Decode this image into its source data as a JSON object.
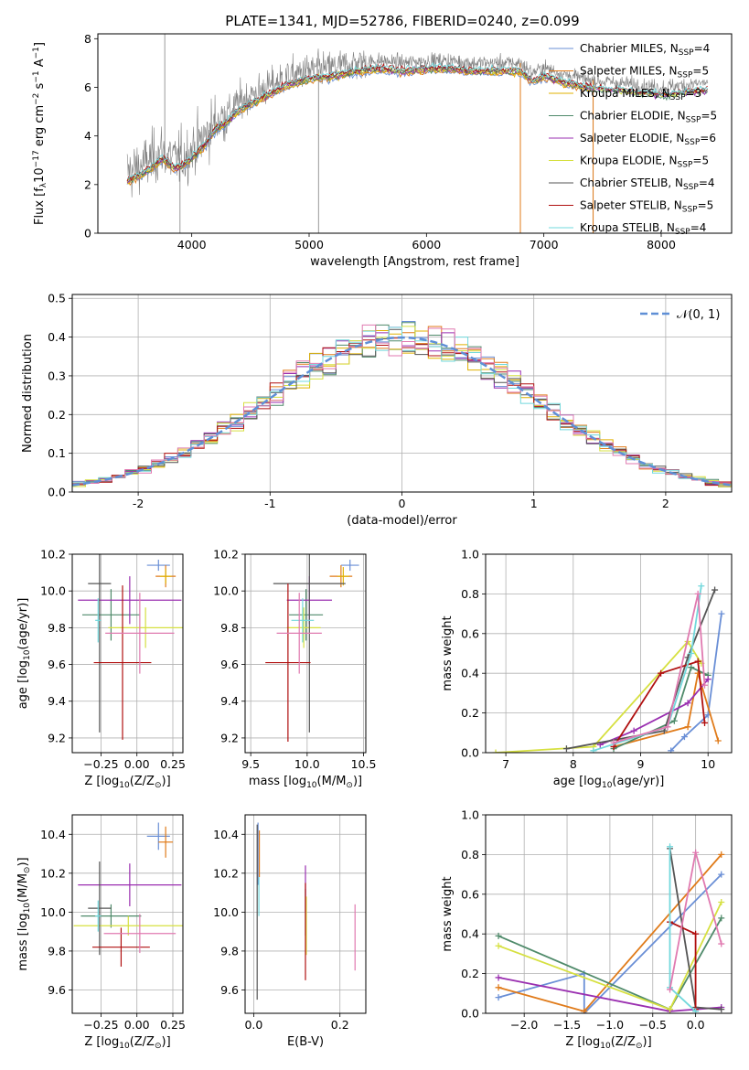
{
  "title": "PLATE=1341, MJD=52786, FIBERID=0240, z=0.099",
  "colors": {
    "Chabrier MILES": "#6a8fd6",
    "Salpeter MILES": "#e07b1a",
    "Kroupa MILES": "#e0b000",
    "Chabrier ELODIE": "#4f8a6a",
    "Salpeter ELODIE": "#9a2fb0",
    "Kroupa ELODIE": "#d6e040",
    "Chabrier STELIB": "#555555",
    "Salpeter STELIB": "#b01010",
    "Kroupa STELIB": "#72d8dc",
    "Pink": "#e07ab0",
    "Gauss": "#5f8fd6"
  },
  "chart_data": [
    {
      "id": "spectrum",
      "type": "line",
      "xlabel": "wavelength [Angstrom, rest frame]",
      "ylabel_parts": [
        "Flux [f",
        "λ",
        "10",
        "−17",
        " erg cm",
        "−2",
        " s",
        "−1",
        " A",
        "−1",
        "]"
      ],
      "xlim": [
        3200,
        8600
      ],
      "ylim": [
        0,
        8.2
      ],
      "xticks": [
        4000,
        5000,
        6000,
        7000,
        8000
      ],
      "yticks": [
        0,
        2,
        4,
        6,
        8
      ],
      "continuum": [
        [
          3450,
          2.5
        ],
        [
          3550,
          2.7
        ],
        [
          3650,
          3.0
        ],
        [
          3750,
          3.4
        ],
        [
          3850,
          3.0
        ],
        [
          3950,
          3.2
        ],
        [
          4100,
          3.9
        ],
        [
          4200,
          4.6
        ],
        [
          4300,
          4.9
        ],
        [
          4400,
          5.4
        ],
        [
          4600,
          5.9
        ],
        [
          4800,
          6.4
        ],
        [
          5000,
          6.7
        ],
        [
          5200,
          6.8
        ],
        [
          5400,
          7.0
        ],
        [
          5600,
          7.1
        ],
        [
          5800,
          7.0
        ],
        [
          6000,
          7.1
        ],
        [
          6200,
          7.1
        ],
        [
          6400,
          7.0
        ],
        [
          6600,
          7.0
        ],
        [
          6800,
          7.0
        ],
        [
          6900,
          6.6
        ],
        [
          7000,
          6.8
        ],
        [
          7200,
          6.5
        ],
        [
          7400,
          6.3
        ],
        [
          7600,
          6.2
        ],
        [
          7800,
          6.1
        ],
        [
          8000,
          6.0
        ],
        [
          8200,
          6.1
        ],
        [
          8400,
          6.2
        ]
      ],
      "legend": [
        {
          "name": "Chabrier MILES",
          "n": "4"
        },
        {
          "name": "Salpeter MILES",
          "n": "5"
        },
        {
          "name": "Kroupa MILES",
          "n": "3"
        },
        {
          "name": "Chabrier ELODIE",
          "n": "5"
        },
        {
          "name": "Salpeter ELODIE",
          "n": "6"
        },
        {
          "name": "Kroupa ELODIE",
          "n": "5"
        },
        {
          "name": "Chabrier STELIB",
          "n": "4"
        },
        {
          "name": "Salpeter STELIB",
          "n": "5"
        },
        {
          "name": "Kroupa STELIB",
          "n": "4"
        }
      ],
      "grid": false,
      "legend_position": "right"
    },
    {
      "id": "residuals",
      "type": "step",
      "xlabel": "(data-model)/error",
      "ylabel": "Normed distribution",
      "xlim": [
        -2.5,
        2.5
      ],
      "ylim": [
        0,
        0.51
      ],
      "xticks": [
        -2,
        -1,
        0,
        1,
        2
      ],
      "yticks": [
        0.0,
        0.1,
        0.2,
        0.3,
        0.4,
        0.5
      ],
      "bin_width": 0.1,
      "gauss_label": "𝒩(0, 1)",
      "grid": true,
      "legend_position": "top-right"
    },
    {
      "id": "age_vs_Z",
      "type": "errorbar",
      "xlabel_parts": [
        "Z [log",
        "10",
        "(Z/Z",
        "⊙",
        ")]"
      ],
      "ylabel_parts": [
        "age  [log",
        "10",
        "(age/yr)]"
      ],
      "xlim": [
        -0.45,
        0.32
      ],
      "ylim": [
        9.12,
        10.2
      ],
      "xticks": [
        -0.25,
        0.0,
        0.25
      ],
      "xtick_labels": [
        "−0.25",
        "0.00",
        "0.25"
      ],
      "yticks": [
        9.2,
        9.4,
        9.6,
        9.8,
        10.0,
        10.2
      ],
      "points": [
        {
          "s": "Chabrier MILES",
          "x": 0.15,
          "y": 10.14,
          "xe": 0.08,
          "ye": 0.03
        },
        {
          "s": "Salpeter MILES",
          "x": 0.2,
          "y": 10.08,
          "xe": 0.07,
          "ye": 0.06
        },
        {
          "s": "Kroupa MILES",
          "x": 0.2,
          "y": 10.08,
          "xe": 0.04,
          "ye": 0.04
        },
        {
          "s": "Chabrier ELODIE",
          "x": -0.18,
          "y": 9.87,
          "xe": 0.2,
          "ye": 0.14
        },
        {
          "s": "Salpeter ELODIE",
          "x": -0.05,
          "y": 9.95,
          "xe": 0.36,
          "ye": 0.13
        },
        {
          "s": "Kroupa ELODIE",
          "x": 0.06,
          "y": 9.8,
          "xe": 0.26,
          "ye": 0.11
        },
        {
          "s": "Chabrier STELIB",
          "x": -0.26,
          "y": 10.04,
          "xe": 0.08,
          "ye": 0.81
        },
        {
          "s": "Salpeter STELIB",
          "x": -0.1,
          "y": 9.61,
          "xe": 0.2,
          "ye": 0.42
        },
        {
          "s": "Kroupa STELIB",
          "x": -0.27,
          "y": 9.84,
          "xe": 0.02,
          "ye": 0.12
        },
        {
          "s": "Pink",
          "x": 0.02,
          "y": 9.77,
          "xe": 0.24,
          "ye": 0.22
        }
      ],
      "grid": true
    },
    {
      "id": "age_vs_mass",
      "type": "errorbar",
      "xlabel_parts": [
        "mass [log",
        "10",
        "(M/M",
        "⊙",
        ")]"
      ],
      "xlim": [
        9.45,
        10.52
      ],
      "ylim": [
        9.12,
        10.2
      ],
      "xticks": [
        9.5,
        10.0,
        10.5
      ],
      "xtick_labels": [
        "9.5",
        "10.0",
        "10.5"
      ],
      "yticks": [
        9.2,
        9.4,
        9.6,
        9.8,
        10.0,
        10.2
      ],
      "points": [
        {
          "s": "Chabrier MILES",
          "x": 10.38,
          "y": 10.14,
          "xe": 0.08,
          "ye": 0.03
        },
        {
          "s": "Salpeter MILES",
          "x": 10.3,
          "y": 10.08,
          "xe": 0.1,
          "ye": 0.06
        },
        {
          "s": "Kroupa MILES",
          "x": 10.32,
          "y": 10.08,
          "xe": 0.05,
          "ye": 0.05
        },
        {
          "s": "Chabrier ELODIE",
          "x": 9.99,
          "y": 9.87,
          "xe": 0.15,
          "ye": 0.14
        },
        {
          "s": "Salpeter ELODIE",
          "x": 10.02,
          "y": 9.95,
          "xe": 0.2,
          "ye": 0.13
        },
        {
          "s": "Kroupa ELODIE",
          "x": 9.97,
          "y": 9.8,
          "xe": 0.15,
          "ye": 0.11
        },
        {
          "s": "Chabrier STELIB",
          "x": 10.02,
          "y": 10.04,
          "xe": 0.32,
          "ye": 0.81
        },
        {
          "s": "Salpeter STELIB",
          "x": 9.83,
          "y": 9.61,
          "xe": 0.2,
          "ye": 0.43
        },
        {
          "s": "Kroupa STELIB",
          "x": 9.96,
          "y": 9.84,
          "xe": 0.1,
          "ye": 0.12
        },
        {
          "s": "Pink",
          "x": 9.93,
          "y": 9.77,
          "xe": 0.2,
          "ye": 0.22
        }
      ],
      "grid": true
    },
    {
      "id": "weight_vs_age",
      "type": "line",
      "xlabel_parts": [
        "age  [log",
        "10",
        "(age/yr)]"
      ],
      "ylabel": "mass weight",
      "xlim": [
        6.7,
        10.35
      ],
      "ylim": [
        0,
        1.0
      ],
      "xticks": [
        7,
        8,
        9,
        10
      ],
      "yticks": [
        0.0,
        0.2,
        0.4,
        0.6,
        0.8,
        1.0
      ],
      "series": [
        {
          "s": "Chabrier MILES",
          "pts": [
            [
              9.45,
              0.01
            ],
            [
              9.65,
              0.08
            ],
            [
              10.0,
              0.19
            ],
            [
              10.2,
              0.7
            ]
          ]
        },
        {
          "s": "Salpeter MILES",
          "pts": [
            [
              8.6,
              0.03
            ],
            [
              9.7,
              0.13
            ],
            [
              9.85,
              0.4
            ],
            [
              10.15,
              0.06
            ]
          ]
        },
        {
          "s": "Chabrier ELODIE",
          "pts": [
            [
              8.6,
              0.02
            ],
            [
              9.5,
              0.16
            ],
            [
              9.75,
              0.43
            ],
            [
              10.0,
              0.39
            ]
          ]
        },
        {
          "s": "Salpeter ELODIE",
          "pts": [
            [
              8.4,
              0.04
            ],
            [
              8.9,
              0.11
            ],
            [
              9.7,
              0.25
            ],
            [
              10.0,
              0.37
            ]
          ]
        },
        {
          "s": "Kroupa ELODIE",
          "pts": [
            [
              6.85,
              0.0
            ],
            [
              8.3,
              0.03
            ],
            [
              9.7,
              0.56
            ],
            [
              9.9,
              0.45
            ]
          ]
        },
        {
          "s": "Chabrier STELIB",
          "pts": [
            [
              7.9,
              0.02
            ],
            [
              9.35,
              0.11
            ],
            [
              9.7,
              0.48
            ],
            [
              10.1,
              0.82
            ]
          ]
        },
        {
          "s": "Salpeter STELIB",
          "pts": [
            [
              8.6,
              0.03
            ],
            [
              9.3,
              0.4
            ],
            [
              9.85,
              0.46
            ],
            [
              9.95,
              0.15
            ]
          ]
        },
        {
          "s": "Kroupa STELIB",
          "pts": [
            [
              8.3,
              0.01
            ],
            [
              9.4,
              0.13
            ],
            [
              9.75,
              0.5
            ],
            [
              9.9,
              0.84
            ]
          ]
        },
        {
          "s": "Pink",
          "pts": [
            [
              8.6,
              0.05
            ],
            [
              9.4,
              0.13
            ],
            [
              9.85,
              0.8
            ],
            [
              9.95,
              0.34
            ]
          ]
        }
      ],
      "grid": true
    },
    {
      "id": "mass_vs_Z",
      "type": "errorbar",
      "xlabel_parts": [
        "Z [log",
        "10",
        "(Z/Z",
        "⊙",
        ")]"
      ],
      "ylabel_parts": [
        "mass [log",
        "10",
        "(M/M",
        "⊙",
        ")]"
      ],
      "xlim": [
        -0.45,
        0.32
      ],
      "ylim": [
        9.48,
        10.5
      ],
      "xticks": [
        -0.25,
        0.0,
        0.25
      ],
      "xtick_labels": [
        "−0.25",
        "0.00",
        "0.25"
      ],
      "yticks": [
        9.6,
        9.8,
        10.0,
        10.2,
        10.4
      ],
      "points": [
        {
          "s": "Chabrier MILES",
          "x": 0.15,
          "y": 10.39,
          "xe": 0.08,
          "ye": 0.07
        },
        {
          "s": "Salpeter MILES",
          "x": 0.2,
          "y": 10.36,
          "xe": 0.05,
          "ye": 0.08
        },
        {
          "s": "Chabrier ELODIE",
          "x": -0.18,
          "y": 9.98,
          "xe": 0.21,
          "ye": 0.06
        },
        {
          "s": "Salpeter ELODIE",
          "x": -0.05,
          "y": 10.14,
          "xe": 0.36,
          "ye": 0.11
        },
        {
          "s": "Kroupa ELODIE",
          "x": -0.06,
          "y": 9.93,
          "xe": 0.38,
          "ye": 0.05
        },
        {
          "s": "Chabrier STELIB",
          "x": -0.26,
          "y": 10.02,
          "xe": 0.08,
          "ye": 0.24
        },
        {
          "s": "Salpeter STELIB",
          "x": -0.11,
          "y": 9.82,
          "xe": 0.2,
          "ye": 0.1
        },
        {
          "s": "Kroupa STELIB",
          "x": -0.27,
          "y": 9.98,
          "xe": 0.02,
          "ye": 0.08
        },
        {
          "s": "Pink",
          "x": 0.02,
          "y": 9.89,
          "xe": 0.25,
          "ye": 0.1
        }
      ],
      "grid": true
    },
    {
      "id": "mass_vs_ebv",
      "type": "errorbar",
      "xlabel": "E(B-V)",
      "xlim": [
        -0.02,
        0.26
      ],
      "ylim": [
        9.48,
        10.5
      ],
      "xticks": [
        0.0,
        0.2
      ],
      "xtick_labels": [
        "0.0",
        "0.2"
      ],
      "yticks": [
        9.6,
        9.8,
        10.0,
        10.2,
        10.4
      ],
      "points": [
        {
          "s": "Chabrier MILES",
          "x": 0.01,
          "y": 10.3,
          "xe": 0,
          "ye": 0.16
        },
        {
          "s": "Salpeter MILES",
          "x": 0.013,
          "y": 10.3,
          "xe": 0,
          "ye": 0.12
        },
        {
          "s": "Chabrier ELODIE",
          "x": 0.12,
          "y": 10.0,
          "xe": 0,
          "ye": 0.12
        },
        {
          "s": "Salpeter ELODIE",
          "x": 0.12,
          "y": 10.12,
          "xe": 0,
          "ye": 0.12
        },
        {
          "s": "Kroupa ELODIE",
          "x": 0.122,
          "y": 9.93,
          "xe": 0,
          "ye": 0.15
        },
        {
          "s": "Chabrier STELIB",
          "x": 0.008,
          "y": 10.0,
          "xe": 0,
          "ye": 0.45
        },
        {
          "s": "Salpeter STELIB",
          "x": 0.12,
          "y": 9.9,
          "xe": 0,
          "ye": 0.25
        },
        {
          "s": "Kroupa STELIB",
          "x": 0.012,
          "y": 10.08,
          "xe": 0,
          "ye": 0.1
        },
        {
          "s": "Pink",
          "x": 0.235,
          "y": 9.87,
          "xe": 0,
          "ye": 0.17
        }
      ],
      "grid": true
    },
    {
      "id": "weight_vs_Z",
      "type": "line",
      "xlabel_parts": [
        "Z [log",
        "10",
        "(Z/Z",
        "⊙",
        ")]"
      ],
      "ylabel": "mass weight",
      "xlim": [
        -2.45,
        0.42
      ],
      "ylim": [
        0,
        1.0
      ],
      "xticks": [
        -2.0,
        -1.5,
        -1.0,
        -0.5,
        0.0
      ],
      "xtick_labels": [
        "−2.0",
        "−1.5",
        "−1.0",
        "−0.5",
        "0.0"
      ],
      "yticks": [
        0.0,
        0.2,
        0.4,
        0.6,
        0.8,
        1.0
      ],
      "series": [
        {
          "s": "Chabrier MILES",
          "pts": [
            [
              -2.3,
              0.08
            ],
            [
              -1.3,
              0.2
            ],
            [
              -1.3,
              0.0
            ],
            [
              0.3,
              0.7
            ]
          ]
        },
        {
          "s": "Salpeter MILES",
          "pts": [
            [
              -2.3,
              0.13
            ],
            [
              -1.3,
              0.01
            ],
            [
              0.3,
              0.8
            ]
          ]
        },
        {
          "s": "Chabrier ELODIE",
          "pts": [
            [
              -2.3,
              0.39
            ],
            [
              -0.3,
              0.02
            ],
            [
              0.3,
              0.48
            ]
          ]
        },
        {
          "s": "Salpeter ELODIE",
          "pts": [
            [
              -2.3,
              0.18
            ],
            [
              -0.3,
              0.01
            ],
            [
              0.3,
              0.03
            ]
          ]
        },
        {
          "s": "Kroupa ELODIE",
          "pts": [
            [
              -2.3,
              0.34
            ],
            [
              -0.3,
              0.02
            ],
            [
              0.3,
              0.56
            ]
          ]
        },
        {
          "s": "Chabrier STELIB",
          "pts": [
            [
              -0.3,
              0.83
            ],
            [
              0.0,
              0.03
            ],
            [
              0.3,
              0.02
            ]
          ]
        },
        {
          "s": "Salpeter STELIB",
          "pts": [
            [
              -0.3,
              0.46
            ],
            [
              0.0,
              0.4
            ],
            [
              0.0,
              0.02
            ]
          ]
        },
        {
          "s": "Kroupa STELIB",
          "pts": [
            [
              -0.3,
              0.84
            ],
            [
              -0.3,
              0.13
            ],
            [
              0.0,
              0.01
            ]
          ]
        },
        {
          "s": "Pink",
          "pts": [
            [
              -0.3,
              0.12
            ],
            [
              0.0,
              0.81
            ],
            [
              0.3,
              0.35
            ]
          ]
        }
      ],
      "grid": true
    }
  ]
}
